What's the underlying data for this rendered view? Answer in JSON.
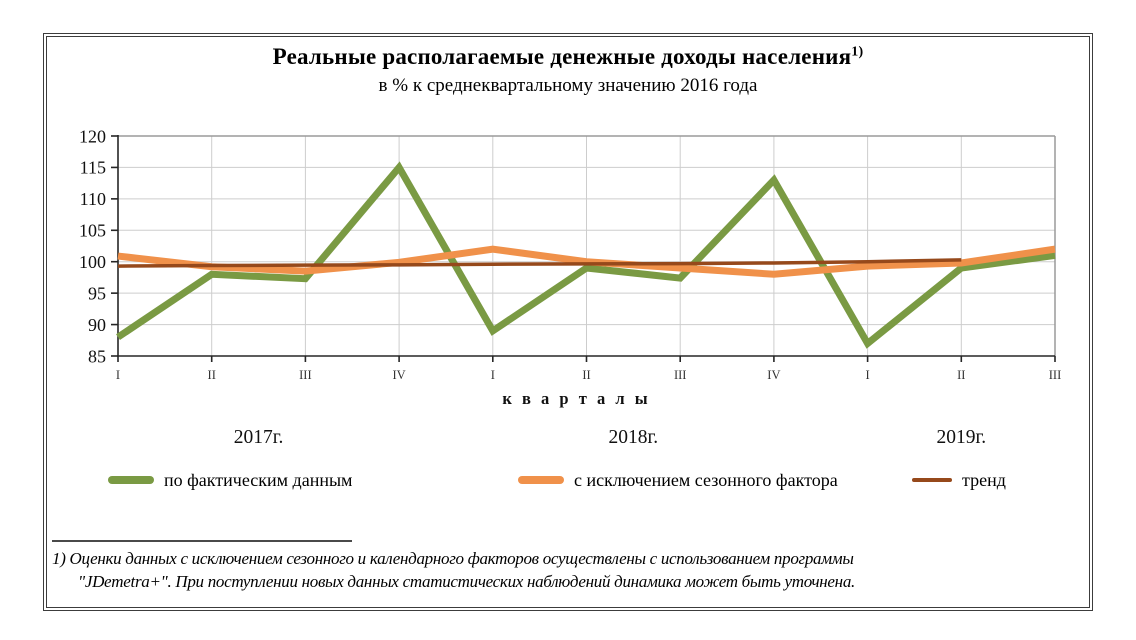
{
  "header": {
    "title": "Реальные располагаемые денежные доходы населения",
    "title_sup": "1)",
    "subtitle": "в % к среднеквартальному значению 2016 года"
  },
  "chart_data": {
    "type": "line",
    "x_categories": [
      "I",
      "II",
      "III",
      "IV",
      "I",
      "II",
      "III",
      "IV",
      "I",
      "II",
      "III"
    ],
    "year_groups": [
      {
        "label": "2017г.",
        "quarters": 4
      },
      {
        "label": "2018г.",
        "quarters": 4
      },
      {
        "label": "2019г.",
        "quarters": 3
      }
    ],
    "xlabel": "к в а р т а л ы",
    "ylim": [
      85,
      120
    ],
    "yticks": [
      85,
      90,
      95,
      100,
      105,
      110,
      115,
      120
    ],
    "grid": true,
    "legend_position": "bottom",
    "series": [
      {
        "name": "по фактическим данным",
        "color": "#7A9A43",
        "width": 7,
        "values": [
          88,
          98,
          97.3,
          115,
          89,
          99,
          97.4,
          113,
          87,
          99,
          101
        ]
      },
      {
        "name": "с исключением сезонного фактора",
        "color": "#F0914A",
        "width": 7,
        "values": [
          100.9,
          99.2,
          98.5,
          99.9,
          102,
          100,
          99,
          98,
          99.3,
          99.8,
          102
        ]
      },
      {
        "name": "тренд",
        "color": "#96491B",
        "width": 3.5,
        "values": [
          99.3,
          99.4,
          99.45,
          99.5,
          99.6,
          99.65,
          99.7,
          99.8,
          100,
          100.3,
          null
        ]
      }
    ],
    "colors": {
      "grid_line": "#CDCDCD",
      "plot_border": "#9A9A9A",
      "axis": "#262626"
    }
  },
  "footnote": {
    "line1": "1) Оценки данных с исключением сезонного и календарного факторов осуществлены с использованием программы",
    "line2": "\"JDemetra+\".  При поступлении новых данных статистических наблюдений динамика может быть уточнена."
  }
}
